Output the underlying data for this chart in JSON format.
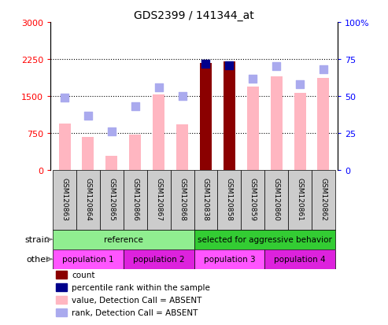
{
  "title": "GDS2399 / 141344_at",
  "samples": [
    "GSM120863",
    "GSM120864",
    "GSM120865",
    "GSM120866",
    "GSM120867",
    "GSM120868",
    "GSM120838",
    "GSM120858",
    "GSM120859",
    "GSM120860",
    "GSM120861",
    "GSM120862"
  ],
  "values": [
    950,
    680,
    300,
    730,
    1530,
    930,
    2170,
    2210,
    1700,
    1900,
    1560,
    1870
  ],
  "ranks": [
    49,
    37,
    26,
    43,
    56,
    50,
    72,
    71,
    62,
    70,
    58,
    68
  ],
  "is_present": [
    false,
    false,
    false,
    false,
    false,
    false,
    true,
    true,
    false,
    false,
    false,
    false
  ],
  "ylim_left": [
    0,
    3000
  ],
  "ylim_right": [
    0,
    100
  ],
  "yticks_left": [
    0,
    750,
    1500,
    2250,
    3000
  ],
  "yticks_right": [
    0,
    25,
    50,
    75,
    100
  ],
  "color_bar_present": "#8B0000",
  "color_bar_absent": "#FFB6C1",
  "color_rank_present": "#00008B",
  "color_rank_absent": "#AAAAEE",
  "strain_groups": [
    {
      "label": "reference",
      "start": 0,
      "end": 6,
      "color": "#90EE90"
    },
    {
      "label": "selected for aggressive behavior",
      "start": 6,
      "end": 12,
      "color": "#33CC33"
    }
  ],
  "other_groups": [
    {
      "label": "population 1",
      "start": 0,
      "end": 3,
      "color": "#FF55FF"
    },
    {
      "label": "population 2",
      "start": 3,
      "end": 6,
      "color": "#DD22DD"
    },
    {
      "label": "population 3",
      "start": 6,
      "end": 9,
      "color": "#FF55FF"
    },
    {
      "label": "population 4",
      "start": 9,
      "end": 12,
      "color": "#DD22DD"
    }
  ],
  "legend_items": [
    {
      "label": "count",
      "color": "#8B0000"
    },
    {
      "label": "percentile rank within the sample",
      "color": "#00008B"
    },
    {
      "label": "value, Detection Call = ABSENT",
      "color": "#FFB6C1"
    },
    {
      "label": "rank, Detection Call = ABSENT",
      "color": "#AAAAEE"
    }
  ],
  "strain_label": "strain",
  "other_label": "other",
  "bar_width": 0.5,
  "rank_marker_size": 45,
  "ytick_grid": [
    750,
    1500,
    2250
  ]
}
